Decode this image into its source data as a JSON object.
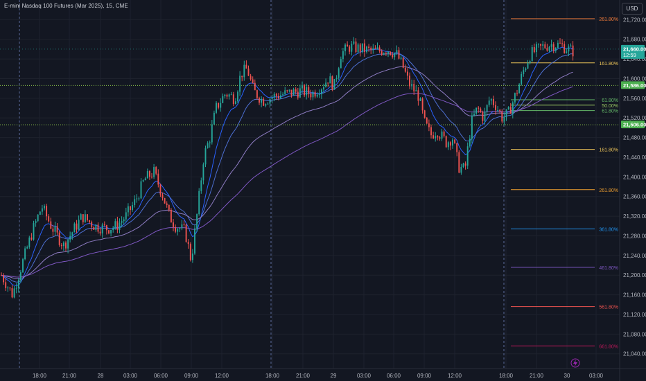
{
  "header": {
    "title": "E-mini Nasdaq 100 Futures (Mar 2025), 15, CME",
    "currency_button": "USD"
  },
  "colors": {
    "background": "#131722",
    "grid": "#1e222d",
    "up_candle": "#26a69a",
    "down_candle": "#ef5350",
    "session_line": "#5b6b9c",
    "ema_fast": "#2962ff",
    "ema_mid": "#4d6fd1",
    "sma_slow": "#8e7cc3",
    "ema_long": "#7e57c2"
  },
  "chart_data": {
    "type": "candlestick",
    "title": "E-mini Nasdaq 100 Futures (Mar 2025), 15, CME",
    "currency": "USD",
    "ylim": [
      21010,
      21760
    ],
    "y_ticks": [
      21040,
      21080,
      21120,
      21160,
      21200,
      21240,
      21280,
      21320,
      21360,
      21400,
      21440,
      21480,
      21520,
      21560,
      21600,
      21640,
      21680,
      21720
    ],
    "y_tick_labels": [
      "21,040.00",
      "21,080.00",
      "21,120.00",
      "21,160.00",
      "21,200.00",
      "21,240.00",
      "21,280.00",
      "21,320.00",
      "21,360.00",
      "21,400.00",
      "21,440.00",
      "21,480.00",
      "21,520.00",
      "21,560.00",
      "21,600.00",
      "21,640.00",
      "21,680.00",
      "21,720.00"
    ],
    "x_tick_labels": [
      "18:00",
      "21:00",
      "28",
      "03:00",
      "06:00",
      "09:00",
      "12:00",
      "18:00",
      "21:00",
      "29",
      "03:00",
      "06:00",
      "09:00",
      "12:00",
      "18:00",
      "21:00",
      "30",
      "03:00"
    ],
    "price_markers": [
      {
        "label": "21,660.00",
        "sublabel": "12:59",
        "value": 21660,
        "color": "#26a69a"
      },
      {
        "label": "21,586.00",
        "value": 21586,
        "color": "#4caf50"
      },
      {
        "label": "21,506.00",
        "value": 21506,
        "color": "#4caf50"
      }
    ],
    "horizontal_levels": [
      21586,
      21506
    ],
    "fib_levels": [
      {
        "label": "261.80%",
        "value": 21722,
        "color": "#f57c3a"
      },
      {
        "label": "161.80%",
        "value": 21632,
        "color": "#f0c75a"
      },
      {
        "label": "61.80%",
        "value": 21557,
        "color": "#66bb6a"
      },
      {
        "label": "50.00%",
        "value": 21546,
        "color": "#9ccc65"
      },
      {
        "label": "61.80%",
        "value": 21535,
        "color": "#66bb6a"
      },
      {
        "label": "161.80%",
        "value": 21456,
        "color": "#f0c75a"
      },
      {
        "label": "261.80%",
        "value": 21374,
        "color": "#f0a030"
      },
      {
        "label": "361.80%",
        "value": 21294,
        "color": "#2196f3"
      },
      {
        "label": "461.80%",
        "value": 21216,
        "color": "#7e57c2"
      },
      {
        "label": "561.80%",
        "value": 21136,
        "color": "#ef5350"
      },
      {
        "label": "661.80%",
        "value": 21056,
        "color": "#c2185b"
      }
    ],
    "price_path": [
      [
        0,
        21200
      ],
      [
        0.018,
        21160
      ],
      [
        0.03,
        21210
      ],
      [
        0.05,
        21290
      ],
      [
        0.065,
        21340
      ],
      [
        0.08,
        21300
      ],
      [
        0.1,
        21260
      ],
      [
        0.115,
        21290
      ],
      [
        0.13,
        21320
      ],
      [
        0.15,
        21300
      ],
      [
        0.17,
        21295
      ],
      [
        0.185,
        21300
      ],
      [
        0.2,
        21320
      ],
      [
        0.215,
        21350
      ],
      [
        0.23,
        21395
      ],
      [
        0.245,
        21410
      ],
      [
        0.26,
        21360
      ],
      [
        0.27,
        21320
      ],
      [
        0.28,
        21300
      ],
      [
        0.295,
        21290
      ],
      [
        0.305,
        21230
      ],
      [
        0.315,
        21330
      ],
      [
        0.325,
        21440
      ],
      [
        0.335,
        21480
      ],
      [
        0.345,
        21540
      ],
      [
        0.36,
        21570
      ],
      [
        0.375,
        21560
      ],
      [
        0.385,
        21610
      ],
      [
        0.395,
        21620
      ],
      [
        0.405,
        21575
      ],
      [
        0.42,
        21555
      ],
      [
        0.44,
        21565
      ],
      [
        0.46,
        21570
      ],
      [
        0.48,
        21575
      ],
      [
        0.5,
        21570
      ],
      [
        0.515,
        21585
      ],
      [
        0.525,
        21600
      ],
      [
        0.535,
        21585
      ],
      [
        0.545,
        21650
      ],
      [
        0.56,
        21665
      ],
      [
        0.58,
        21660
      ],
      [
        0.6,
        21655
      ],
      [
        0.62,
        21660
      ],
      [
        0.635,
        21650
      ],
      [
        0.645,
        21625
      ],
      [
        0.655,
        21590
      ],
      [
        0.67,
        21565
      ],
      [
        0.68,
        21510
      ],
      [
        0.69,
        21485
      ],
      [
        0.7,
        21495
      ],
      [
        0.715,
        21470
      ],
      [
        0.725,
        21480
      ],
      [
        0.735,
        21420
      ],
      [
        0.745,
        21415
      ],
      [
        0.755,
        21510
      ],
      [
        0.765,
        21540
      ],
      [
        0.775,
        21520
      ],
      [
        0.785,
        21560
      ],
      [
        0.795,
        21545
      ],
      [
        0.805,
        21520
      ],
      [
        0.815,
        21530
      ],
      [
        0.83,
        21580
      ],
      [
        0.84,
        21620
      ],
      [
        0.85,
        21650
      ],
      [
        0.87,
        21665
      ],
      [
        0.885,
        21670
      ],
      [
        0.9,
        21668
      ],
      [
        0.91,
        21660
      ],
      [
        0.92,
        21655
      ]
    ]
  }
}
